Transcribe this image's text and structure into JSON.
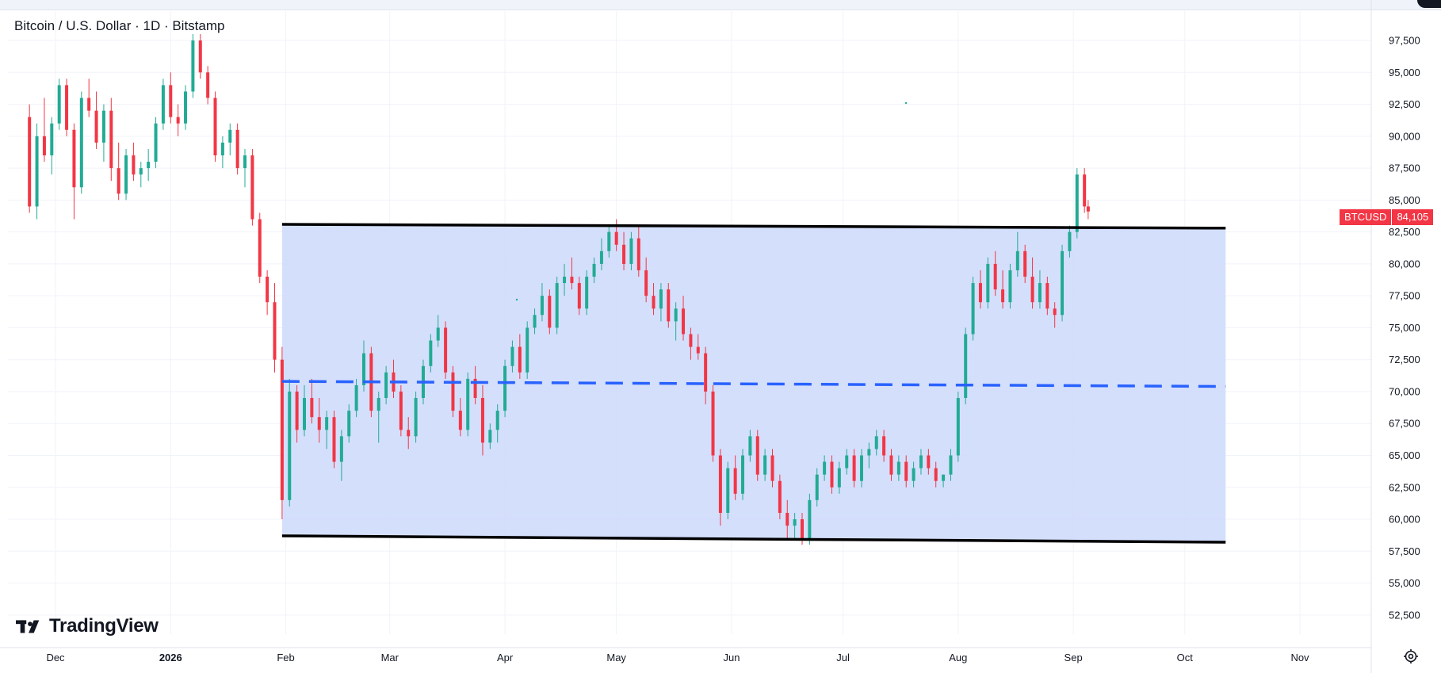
{
  "header": {
    "title": "Bitcoin / U.S. Dollar · 1D · Bitstamp"
  },
  "branding": {
    "logo_text": "TradingView"
  },
  "price_tag": {
    "symbol": "BTCUSD",
    "value": "84,105",
    "color": "#f23645"
  },
  "colors": {
    "up": "#22ab94",
    "down": "#f23645",
    "channel_fill": "#cfdcfc",
    "channel_line": "#000000",
    "mid_line": "#2962ff",
    "grid": "#f0f3fa"
  },
  "icons": {
    "settings": "settings-gear-icon"
  },
  "chart_data": {
    "type": "candlestick",
    "x_tick_labels": [
      "Dec",
      "2026",
      "Feb",
      "Mar",
      "Apr",
      "May",
      "Jun",
      "Jul",
      "Aug",
      "Sep",
      "Oct",
      "Nov"
    ],
    "y_tick_labels": [
      "97,500",
      "95,000",
      "92,500",
      "90,000",
      "87,500",
      "85,000",
      "82,500",
      "80,000",
      "77,500",
      "75,000",
      "72,500",
      "70,000",
      "67,500",
      "65,000",
      "62,500",
      "60,000",
      "57,500",
      "55,000",
      "52,500"
    ],
    "ylim": [
      51000,
      99800
    ],
    "last_price": 84105,
    "annotations": {
      "channel_upper": {
        "from": [
          "2026-01-31",
          83100
        ],
        "to": [
          "2026-10-12",
          82800
        ]
      },
      "channel_lower": {
        "from": [
          "2026-01-31",
          58700
        ],
        "to": [
          "2026-10-12",
          58200
        ]
      },
      "channel_mid": {
        "from": [
          "2026-01-31",
          70800
        ],
        "to": [
          "2026-10-12",
          70400
        ],
        "style": "dashed"
      }
    },
    "candles": [
      [
        "2025-11-24",
        91500,
        92500,
        84000,
        84500
      ],
      [
        "2025-11-26",
        84500,
        91000,
        83500,
        90000
      ],
      [
        "2025-11-28",
        90000,
        93000,
        88000,
        88500
      ],
      [
        "2025-11-30",
        88500,
        91500,
        87000,
        91000
      ],
      [
        "2025-12-02",
        91000,
        94500,
        90500,
        94000
      ],
      [
        "2025-12-04",
        94000,
        94500,
        90000,
        90500
      ],
      [
        "2025-12-06",
        90500,
        91000,
        83500,
        86000
      ],
      [
        "2025-12-08",
        86000,
        93500,
        85500,
        93000
      ],
      [
        "2025-12-10",
        93000,
        94500,
        91500,
        92000
      ],
      [
        "2025-12-12",
        92000,
        93500,
        89000,
        89500
      ],
      [
        "2025-12-14",
        89500,
        92500,
        88000,
        92000
      ],
      [
        "2025-12-16",
        92000,
        93000,
        86500,
        87500
      ],
      [
        "2025-12-18",
        87500,
        89500,
        85000,
        85500
      ],
      [
        "2025-12-20",
        85500,
        89000,
        85000,
        88500
      ],
      [
        "2025-12-22",
        88500,
        89500,
        86500,
        87000
      ],
      [
        "2025-12-24",
        87000,
        88000,
        86000,
        87500
      ],
      [
        "2025-12-26",
        87500,
        89000,
        86500,
        88000
      ],
      [
        "2025-12-28",
        88000,
        91500,
        87500,
        91000
      ],
      [
        "2025-12-30",
        91000,
        94500,
        90500,
        94000
      ],
      [
        "2026-01-01",
        94000,
        95000,
        91000,
        91500
      ],
      [
        "2026-01-03",
        91500,
        92500,
        90000,
        91000
      ],
      [
        "2026-01-05",
        91000,
        94000,
        90500,
        93500
      ],
      [
        "2026-01-07",
        93500,
        98000,
        93000,
        97500
      ],
      [
        "2026-01-09",
        97500,
        98000,
        94500,
        95000
      ],
      [
        "2026-01-11",
        95000,
        95500,
        92500,
        93000
      ],
      [
        "2026-01-13",
        93000,
        93500,
        88000,
        88500
      ],
      [
        "2026-01-15",
        88500,
        90000,
        87500,
        89500
      ],
      [
        "2026-01-17",
        89500,
        91000,
        88500,
        90500
      ],
      [
        "2026-01-19",
        90500,
        91000,
        87000,
        87500
      ],
      [
        "2026-01-21",
        87500,
        89000,
        86000,
        88500
      ],
      [
        "2026-01-23",
        88500,
        89000,
        83000,
        83500
      ],
      [
        "2026-01-25",
        83500,
        84000,
        78500,
        79000
      ],
      [
        "2026-01-27",
        79000,
        79500,
        76000,
        77000
      ],
      [
        "2026-01-29",
        77000,
        78500,
        71500,
        72500
      ],
      [
        "2026-01-31",
        72500,
        73500,
        60000,
        61500
      ],
      [
        "2026-02-02",
        61500,
        71000,
        61000,
        70000
      ],
      [
        "2026-02-04",
        70000,
        70500,
        66000,
        67000
      ],
      [
        "2026-02-06",
        67000,
        70500,
        66500,
        69500
      ],
      [
        "2026-02-08",
        69500,
        71000,
        67500,
        68000
      ],
      [
        "2026-02-10",
        68000,
        69500,
        66000,
        67000
      ],
      [
        "2026-02-12",
        67000,
        68500,
        65500,
        68000
      ],
      [
        "2026-02-14",
        68000,
        68500,
        64000,
        64500
      ],
      [
        "2026-02-16",
        64500,
        67000,
        63000,
        66500
      ],
      [
        "2026-02-18",
        66500,
        69000,
        66000,
        68500
      ],
      [
        "2026-02-20",
        68500,
        71000,
        68000,
        70500
      ],
      [
        "2026-02-22",
        70500,
        74000,
        70000,
        73000
      ],
      [
        "2026-02-24",
        73000,
        73500,
        68000,
        68500
      ],
      [
        "2026-02-26",
        68500,
        70000,
        66000,
        69500
      ],
      [
        "2026-02-28",
        69500,
        72000,
        69000,
        71500
      ],
      [
        "2026-03-02",
        71500,
        72500,
        69500,
        70000
      ],
      [
        "2026-03-04",
        70000,
        70500,
        66500,
        67000
      ],
      [
        "2026-03-06",
        67000,
        68000,
        65500,
        66500
      ],
      [
        "2026-03-08",
        66500,
        70000,
        66000,
        69500
      ],
      [
        "2026-03-10",
        69500,
        72500,
        69000,
        72000
      ],
      [
        "2026-03-12",
        72000,
        74500,
        71500,
        74000
      ],
      [
        "2026-03-14",
        74000,
        76000,
        73500,
        75000
      ],
      [
        "2026-03-16",
        75000,
        75500,
        71000,
        71500
      ],
      [
        "2026-03-18",
        71500,
        72000,
        68000,
        68500
      ],
      [
        "2026-03-20",
        68500,
        69500,
        66500,
        67000
      ],
      [
        "2026-03-22",
        67000,
        71500,
        66500,
        71000
      ],
      [
        "2026-03-24",
        71000,
        72000,
        69000,
        69500
      ],
      [
        "2026-03-26",
        69500,
        70500,
        65000,
        66000
      ],
      [
        "2026-03-28",
        66000,
        67500,
        65500,
        67000
      ],
      [
        "2026-03-30",
        67000,
        69000,
        66000,
        68500
      ],
      [
        "2026-04-01",
        68500,
        72500,
        68000,
        72000
      ],
      [
        "2026-04-03",
        72000,
        74000,
        71500,
        73500
      ],
      [
        "2026-04-05",
        73500,
        74500,
        71000,
        71500
      ],
      [
        "2026-04-07",
        71500,
        75500,
        71000,
        75000
      ],
      [
        "2026-04-09",
        75000,
        76500,
        74500,
        76000
      ],
      [
        "2026-04-11",
        76000,
        78500,
        75500,
        77500
      ],
      [
        "2026-04-13",
        77500,
        78000,
        74500,
        75000
      ],
      [
        "2026-04-15",
        75000,
        79000,
        74500,
        78500
      ],
      [
        "2026-04-17",
        78500,
        80000,
        77500,
        79000
      ],
      [
        "2026-04-19",
        79000,
        80500,
        78000,
        78500
      ],
      [
        "2026-04-21",
        78500,
        79000,
        76000,
        76500
      ],
      [
        "2026-04-23",
        76500,
        79500,
        76000,
        79000
      ],
      [
        "2026-04-25",
        79000,
        80500,
        78500,
        80000
      ],
      [
        "2026-04-27",
        80000,
        82000,
        79500,
        81000
      ],
      [
        "2026-04-29",
        81000,
        83000,
        80500,
        82500
      ],
      [
        "2026-05-01",
        82500,
        83500,
        81000,
        81500
      ],
      [
        "2026-05-03",
        81500,
        82500,
        79500,
        80000
      ],
      [
        "2026-05-05",
        80000,
        82500,
        79500,
        82000
      ],
      [
        "2026-05-07",
        82000,
        83000,
        79000,
        79500
      ],
      [
        "2026-05-09",
        79500,
        80500,
        77000,
        77500
      ],
      [
        "2026-05-11",
        77500,
        78500,
        76000,
        76500
      ],
      [
        "2026-05-13",
        76500,
        78500,
        75500,
        78000
      ],
      [
        "2026-05-15",
        78000,
        78500,
        75000,
        75500
      ],
      [
        "2026-05-17",
        75500,
        77000,
        74000,
        76500
      ],
      [
        "2026-05-19",
        76500,
        77500,
        74000,
        74500
      ],
      [
        "2026-05-21",
        74500,
        75000,
        72500,
        73500
      ],
      [
        "2026-05-23",
        73500,
        74500,
        72500,
        73000
      ],
      [
        "2026-05-25",
        73000,
        73500,
        69000,
        70000
      ],
      [
        "2026-05-27",
        70000,
        70500,
        64500,
        65000
      ],
      [
        "2026-05-29",
        65000,
        65500,
        59500,
        60500
      ],
      [
        "2026-05-31",
        60500,
        64500,
        60000,
        64000
      ],
      [
        "2026-06-02",
        64000,
        65000,
        61500,
        62000
      ],
      [
        "2026-06-04",
        62000,
        65500,
        61500,
        65000
      ],
      [
        "2026-06-06",
        65000,
        67000,
        64500,
        66500
      ],
      [
        "2026-06-08",
        66500,
        67000,
        63000,
        63500
      ],
      [
        "2026-06-10",
        63500,
        65500,
        63000,
        65000
      ],
      [
        "2026-06-12",
        65000,
        65500,
        62500,
        63000
      ],
      [
        "2026-06-14",
        63000,
        63500,
        60000,
        60500
      ],
      [
        "2026-06-16",
        60500,
        61500,
        58500,
        59500
      ],
      [
        "2026-06-18",
        59500,
        60500,
        58500,
        60000
      ],
      [
        "2026-06-20",
        60000,
        60500,
        58000,
        58500
      ],
      [
        "2026-06-22",
        58500,
        62000,
        58000,
        61500
      ],
      [
        "2026-06-24",
        61500,
        64000,
        61000,
        63500
      ],
      [
        "2026-06-26",
        63500,
        65000,
        63000,
        64500
      ],
      [
        "2026-06-28",
        64500,
        65000,
        62000,
        62500
      ],
      [
        "2026-06-30",
        62500,
        64500,
        62000,
        64000
      ],
      [
        "2026-07-02",
        64000,
        65500,
        63500,
        65000
      ],
      [
        "2026-07-04",
        65000,
        65500,
        62500,
        63000
      ],
      [
        "2026-07-06",
        63000,
        65500,
        62500,
        65000
      ],
      [
        "2026-07-08",
        65000,
        66000,
        64000,
        65500
      ],
      [
        "2026-07-10",
        65500,
        67000,
        65000,
        66500
      ],
      [
        "2026-07-12",
        66500,
        67000,
        64500,
        65000
      ],
      [
        "2026-07-14",
        65000,
        65500,
        63000,
        63500
      ],
      [
        "2026-07-16",
        63500,
        65000,
        63000,
        64500
      ],
      [
        "2026-07-18",
        64500,
        65000,
        62500,
        63000
      ],
      [
        "2026-07-20",
        63000,
        64500,
        62500,
        64000
      ],
      [
        "2026-07-22",
        64000,
        65500,
        63500,
        65000
      ],
      [
        "2026-07-24",
        65000,
        65500,
        63500,
        64000
      ],
      [
        "2026-07-26",
        64000,
        64500,
        62500,
        63000
      ],
      [
        "2026-07-28",
        63000,
        63500,
        62500,
        63500
      ],
      [
        "2026-07-30",
        63500,
        65500,
        63000,
        65000
      ],
      [
        "2026-08-01",
        65000,
        70000,
        64500,
        69500
      ],
      [
        "2026-08-03",
        69500,
        75000,
        69000,
        74500
      ],
      [
        "2026-08-05",
        74500,
        79000,
        74000,
        78500
      ],
      [
        "2026-08-07",
        78500,
        79500,
        76500,
        77000
      ],
      [
        "2026-08-09",
        77000,
        80500,
        76500,
        80000
      ],
      [
        "2026-08-11",
        80000,
        81000,
        77500,
        78000
      ],
      [
        "2026-08-13",
        78000,
        79500,
        76500,
        77000
      ],
      [
        "2026-08-15",
        77000,
        80000,
        76500,
        79500
      ],
      [
        "2026-08-17",
        79500,
        82500,
        79000,
        81000
      ],
      [
        "2026-08-19",
        81000,
        81500,
        78500,
        79000
      ],
      [
        "2026-08-21",
        79000,
        80500,
        76500,
        77000
      ],
      [
        "2026-08-23",
        77000,
        79500,
        76500,
        78500
      ],
      [
        "2026-08-25",
        78500,
        79000,
        76000,
        76500
      ],
      [
        "2026-08-27",
        76500,
        77000,
        75000,
        76000
      ],
      [
        "2026-08-29",
        76000,
        81500,
        75500,
        81000
      ],
      [
        "2026-08-31",
        81000,
        83000,
        80500,
        82500
      ],
      [
        "2026-09-02",
        82500,
        87500,
        82000,
        87000
      ],
      [
        "2026-09-04",
        87000,
        87500,
        84000,
        84500
      ],
      [
        "2026-09-05",
        84500,
        85000,
        83500,
        84105
      ]
    ]
  }
}
